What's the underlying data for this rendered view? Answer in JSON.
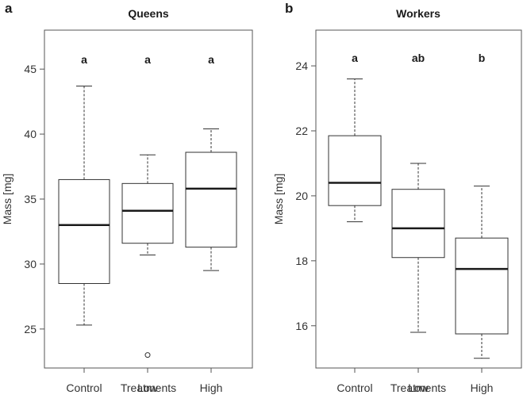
{
  "chart_data": [
    {
      "panel": "a",
      "type": "boxplot",
      "title": "Queens",
      "xlabel": "Treatments",
      "ylabel": "Mass [mg]",
      "ylim": [
        22,
        48
      ],
      "yticks": [
        25,
        30,
        35,
        40,
        45
      ],
      "categories": [
        "Control",
        "Low",
        "High"
      ],
      "boxes": [
        {
          "category": "Control",
          "min": 25.3,
          "q1": 28.5,
          "median": 33.0,
          "q3": 36.5,
          "max": 43.7,
          "outliers": [],
          "significance": "a"
        },
        {
          "category": "Low",
          "min": 30.7,
          "q1": 31.6,
          "median": 34.1,
          "q3": 36.2,
          "max": 38.4,
          "outliers": [
            23.0
          ],
          "significance": "a"
        },
        {
          "category": "High",
          "min": 29.5,
          "q1": 31.3,
          "median": 35.8,
          "q3": 38.6,
          "max": 40.4,
          "outliers": [],
          "significance": "a"
        }
      ]
    },
    {
      "panel": "b",
      "type": "boxplot",
      "title": "Workers",
      "xlabel": "Treatments",
      "ylabel": "Mass [mg]",
      "ylim": [
        14.7,
        25.1
      ],
      "yticks": [
        16,
        18,
        20,
        22,
        24
      ],
      "categories": [
        "Control",
        "Low",
        "High"
      ],
      "boxes": [
        {
          "category": "Control",
          "min": 19.2,
          "q1": 19.7,
          "median": 20.4,
          "q3": 21.85,
          "max": 23.6,
          "outliers": [],
          "significance": "a"
        },
        {
          "category": "Low",
          "min": 15.8,
          "q1": 18.1,
          "median": 19.0,
          "q3": 20.2,
          "max": 21.0,
          "outliers": [],
          "significance": "ab"
        },
        {
          "category": "High",
          "min": 15.0,
          "q1": 15.75,
          "median": 17.75,
          "q3": 18.7,
          "max": 20.3,
          "outliers": [],
          "significance": "b"
        }
      ]
    }
  ]
}
